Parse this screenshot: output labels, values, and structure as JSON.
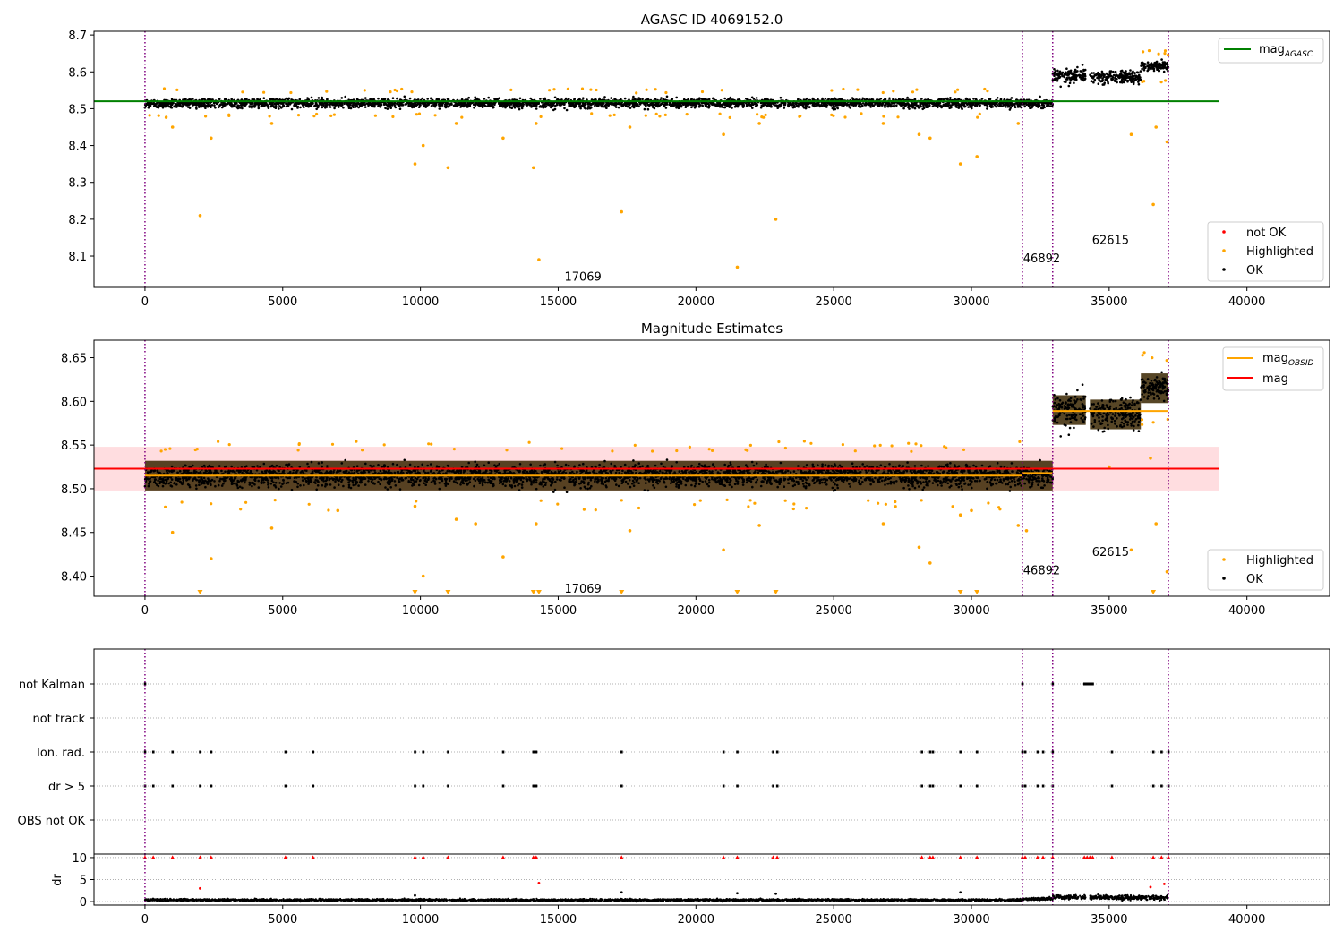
{
  "chart_data": [
    {
      "type": "scatter",
      "title": "AGASC ID 4069152.0",
      "xlim": [
        -1850,
        43000
      ],
      "ylim": [
        8.015,
        8.71
      ],
      "x_ticks": [
        0,
        5000,
        10000,
        15000,
        20000,
        25000,
        30000,
        35000,
        40000
      ],
      "x_tick_labels": [
        "0",
        "5000",
        "10000",
        "15000",
        "20000",
        "25000",
        "30000",
        "35000",
        "40000"
      ],
      "y_ticks": [
        8.1,
        8.2,
        8.3,
        8.4,
        8.5,
        8.6,
        8.7
      ],
      "y_tick_labels": [
        "8.1",
        "8.2",
        "8.3",
        "8.4",
        "8.5",
        "8.6",
        "8.7"
      ],
      "obsid_boundaries": [
        0,
        31850,
        32950,
        37150
      ],
      "obsid_labels": [
        {
          "text": "17069",
          "x": 15900,
          "y": 8.045
        },
        {
          "text": "46892",
          "x": 32550,
          "y": 8.095
        },
        {
          "text": "62615",
          "x": 35050,
          "y": 8.145
        }
      ],
      "reference_lines": [
        {
          "name": "mag_AGASC",
          "value": 8.52,
          "x_range": [
            -1850,
            39000
          ],
          "color": "#008000"
        }
      ],
      "segments": [
        {
          "x_range": [
            0,
            31850
          ],
          "center": 8.515,
          "spread": 0.012
        },
        {
          "x_range": [
            31850,
            32950
          ],
          "center": 8.515,
          "spread": 0.012
        },
        {
          "x_range": [
            32950,
            34150
          ],
          "center": 8.59,
          "spread": 0.02
        },
        {
          "x_range": [
            34300,
            36150
          ],
          "center": 8.585,
          "spread": 0.017
        },
        {
          "x_range": [
            36150,
            37150
          ],
          "center": 8.615,
          "spread": 0.013
        }
      ],
      "highlighted_points": [
        [
          1000,
          8.45
        ],
        [
          2000,
          8.21
        ],
        [
          2400,
          8.42
        ],
        [
          4600,
          8.46
        ],
        [
          9800,
          8.35
        ],
        [
          10100,
          8.4
        ],
        [
          11000,
          8.34
        ],
        [
          11300,
          8.46
        ],
        [
          13000,
          8.42
        ],
        [
          14100,
          8.34
        ],
        [
          14300,
          8.09
        ],
        [
          14200,
          8.46
        ],
        [
          17300,
          8.22
        ],
        [
          17600,
          8.45
        ],
        [
          21000,
          8.43
        ],
        [
          21500,
          8.07
        ],
        [
          22300,
          8.46
        ],
        [
          22900,
          8.2
        ],
        [
          26800,
          8.46
        ],
        [
          28100,
          8.43
        ],
        [
          28500,
          8.42
        ],
        [
          29600,
          8.35
        ],
        [
          30200,
          8.37
        ],
        [
          31700,
          8.46
        ],
        [
          35800,
          8.43
        ],
        [
          36600,
          8.24
        ],
        [
          36700,
          8.45
        ],
        [
          37100,
          8.41
        ]
      ],
      "legend_lines": [
        {
          "label": "mag",
          "subscript": "AGASC",
          "color": "#008000"
        }
      ],
      "legend_points": [
        {
          "label": "not OK",
          "color": "#ff0000"
        },
        {
          "label": "Highlighted",
          "color": "#ffa500"
        },
        {
          "label": "OK",
          "color": "#000000"
        }
      ]
    },
    {
      "type": "scatter",
      "title": "Magnitude Estimates",
      "xlim": [
        -1850,
        43000
      ],
      "ylim": [
        8.377,
        8.67
      ],
      "x_ticks": [
        0,
        5000,
        10000,
        15000,
        20000,
        25000,
        30000,
        35000,
        40000
      ],
      "x_tick_labels": [
        "0",
        "5000",
        "10000",
        "15000",
        "20000",
        "25000",
        "30000",
        "35000",
        "40000"
      ],
      "y_ticks": [
        8.4,
        8.45,
        8.5,
        8.55,
        8.6,
        8.65
      ],
      "y_tick_labels": [
        "8.40",
        "8.45",
        "8.50",
        "8.55",
        "8.60",
        "8.65"
      ],
      "obsid_boundaries": [
        0,
        31850,
        32950,
        37150
      ],
      "obsid_labels": [
        {
          "text": "17069",
          "x": 15900,
          "y": 8.386
        },
        {
          "text": "46892",
          "x": 32550,
          "y": 8.407
        },
        {
          "text": "62615",
          "x": 35050,
          "y": 8.428
        }
      ],
      "band": {
        "x_range": [
          -1850,
          39000
        ],
        "y_range": [
          8.498,
          8.548
        ],
        "color": "#ffdde0"
      },
      "reference_lines": [
        {
          "name": "mag",
          "value": 8.523,
          "x_range": [
            -1850,
            39000
          ],
          "color": "#ff0000"
        }
      ],
      "obsid_lines": [
        {
          "value": 8.515,
          "x_range": [
            0,
            31850
          ]
        },
        {
          "value": 8.518,
          "x_range": [
            31850,
            32950
          ]
        },
        {
          "value": 8.589,
          "x_range": [
            32950,
            37150
          ]
        }
      ],
      "segments": [
        {
          "x_range": [
            0,
            31850
          ],
          "center": 8.515,
          "spread": 0.012
        },
        {
          "x_range": [
            31850,
            32950
          ],
          "center": 8.515,
          "spread": 0.012
        },
        {
          "x_range": [
            32950,
            34150
          ],
          "center": 8.59,
          "spread": 0.02
        },
        {
          "x_range": [
            34300,
            36150
          ],
          "center": 8.585,
          "spread": 0.017
        },
        {
          "x_range": [
            36150,
            37150
          ],
          "center": 8.615,
          "spread": 0.013
        }
      ],
      "highlighted_points": [
        [
          1000,
          8.45
        ],
        [
          2400,
          8.42
        ],
        [
          4600,
          8.455
        ],
        [
          7000,
          8.475
        ],
        [
          9800,
          8.48
        ],
        [
          10100,
          8.4
        ],
        [
          11300,
          8.465
        ],
        [
          12000,
          8.46
        ],
        [
          13000,
          8.422
        ],
        [
          14200,
          8.46
        ],
        [
          17600,
          8.452
        ],
        [
          21000,
          8.43
        ],
        [
          22300,
          8.458
        ],
        [
          26800,
          8.46
        ],
        [
          28100,
          8.433
        ],
        [
          28500,
          8.415
        ],
        [
          29600,
          8.47
        ],
        [
          30000,
          8.475
        ],
        [
          31700,
          8.458
        ],
        [
          32000,
          8.452
        ],
        [
          35000,
          8.525
        ],
        [
          35800,
          8.43
        ],
        [
          36500,
          8.535
        ],
        [
          36700,
          8.46
        ],
        [
          37100,
          8.405
        ]
      ],
      "clipped_points": [
        2000,
        9800,
        11000,
        14100,
        14300,
        17300,
        21500,
        22900,
        29600,
        30200,
        36600
      ],
      "legend_lines": [
        {
          "label": "mag",
          "subscript": "OBSID",
          "color": "#ffa500"
        },
        {
          "label": "mag",
          "subscript": "",
          "color": "#ff0000"
        }
      ],
      "legend_points": [
        {
          "label": "Highlighted",
          "color": "#ffa500"
        },
        {
          "label": "OK",
          "color": "#000000"
        }
      ]
    },
    {
      "type": "scatter",
      "title": "",
      "xlim": [
        -1850,
        43000
      ],
      "categories": [
        "not Kalman",
        "not track",
        "Ion. rad.",
        "dr > 5",
        "OBS not OK"
      ],
      "obsid_boundaries": [
        0,
        31850,
        32950,
        37150
      ],
      "flag_points": {
        "not Kalman": [
          0,
          31850,
          32950,
          34100,
          34150,
          34200,
          34250,
          34300,
          34350,
          34400
        ],
        "not track": [],
        "Ion. rad.": [
          0,
          300,
          1000,
          2000,
          2400,
          5100,
          6100,
          9800,
          10100,
          11000,
          13000,
          14100,
          14200,
          17300,
          21000,
          21500,
          22800,
          22950,
          28200,
          28500,
          28600,
          29600,
          30200,
          31850,
          31950,
          32400,
          32600,
          32950,
          35100,
          36600,
          36900,
          37150
        ],
        "dr > 5": [
          0,
          300,
          1000,
          2000,
          2400,
          5100,
          6100,
          9800,
          10100,
          11000,
          13000,
          14100,
          14200,
          17300,
          21000,
          21500,
          22800,
          22950,
          28200,
          28500,
          28600,
          29600,
          30200,
          31850,
          31950,
          32400,
          32600,
          32950,
          35100,
          36600,
          36900,
          37150
        ],
        "OBS not OK": []
      }
    },
    {
      "type": "scatter",
      "title": "",
      "ylabel": "dr",
      "xlim": [
        -1850,
        43000
      ],
      "ylim": [
        -0.8,
        10.8
      ],
      "x_ticks": [
        0,
        5000,
        10000,
        15000,
        20000,
        25000,
        30000,
        35000,
        40000
      ],
      "x_tick_labels": [
        "0",
        "5000",
        "10000",
        "15000",
        "20000",
        "25000",
        "30000",
        "35000",
        "40000"
      ],
      "y_ticks": [
        0,
        5,
        10
      ],
      "y_tick_labels": [
        "0",
        "5",
        "10"
      ],
      "obsid_boundaries": [
        0,
        31850,
        32950,
        37150
      ],
      "capped_value": 10,
      "capped_points": [
        0,
        300,
        1000,
        2000,
        2400,
        5100,
        6100,
        9800,
        10100,
        11000,
        13000,
        14100,
        14200,
        17300,
        21000,
        21500,
        22800,
        22950,
        28200,
        28500,
        28600,
        29600,
        30200,
        31850,
        31950,
        32400,
        32600,
        32950,
        34100,
        34200,
        34300,
        34400,
        35100,
        36600,
        36900,
        37150
      ],
      "outlier_points": [
        [
          2000,
          3.0
        ],
        [
          14300,
          4.2
        ],
        [
          36500,
          3.3
        ],
        [
          37000,
          4.0
        ]
      ],
      "outlier_points_ok": [
        [
          9800,
          1.4
        ],
        [
          17300,
          2.1
        ],
        [
          21500,
          1.9
        ],
        [
          22900,
          1.8
        ],
        [
          29600,
          2.1
        ]
      ],
      "segments": [
        {
          "x_range": [
            0,
            31850
          ],
          "center": 0.35,
          "spread": 0.25
        },
        {
          "x_range": [
            31850,
            32950
          ],
          "center": 0.6,
          "spread": 0.3
        },
        {
          "x_range": [
            32950,
            34150
          ],
          "center": 1.0,
          "spread": 0.5
        },
        {
          "x_range": [
            34300,
            37150
          ],
          "center": 0.9,
          "spread": 0.5
        }
      ]
    }
  ]
}
